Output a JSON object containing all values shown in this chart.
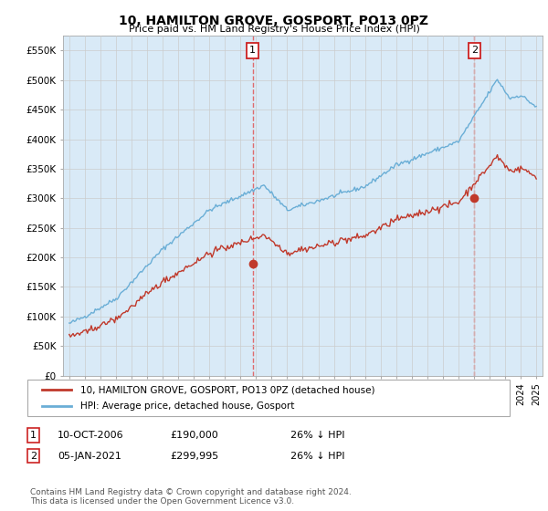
{
  "title": "10, HAMILTON GROVE, GOSPORT, PO13 0PZ",
  "subtitle": "Price paid vs. HM Land Registry's House Price Index (HPI)",
  "ylabel_ticks": [
    "£0",
    "£50K",
    "£100K",
    "£150K",
    "£200K",
    "£250K",
    "£300K",
    "£350K",
    "£400K",
    "£450K",
    "£500K",
    "£550K"
  ],
  "yticks": [
    0,
    50000,
    100000,
    150000,
    200000,
    250000,
    300000,
    350000,
    400000,
    450000,
    500000,
    550000
  ],
  "ylim": [
    0,
    575000
  ],
  "xlim_start": 1994.6,
  "xlim_end": 2025.4,
  "hpi_color": "#6aaed6",
  "hpi_fill_color": "#d9eaf7",
  "price_color": "#c0392b",
  "vline_color": "#e05555",
  "marker1_x": 2006.78,
  "marker1_y": 190000,
  "marker2_x": 2021.02,
  "marker2_y": 299995,
  "legend_line1": "10, HAMILTON GROVE, GOSPORT, PO13 0PZ (detached house)",
  "legend_line2": "HPI: Average price, detached house, Gosport",
  "footer": "Contains HM Land Registry data © Crown copyright and database right 2024.\nThis data is licensed under the Open Government Licence v3.0.",
  "background_color": "#ffffff",
  "grid_color": "#cccccc"
}
